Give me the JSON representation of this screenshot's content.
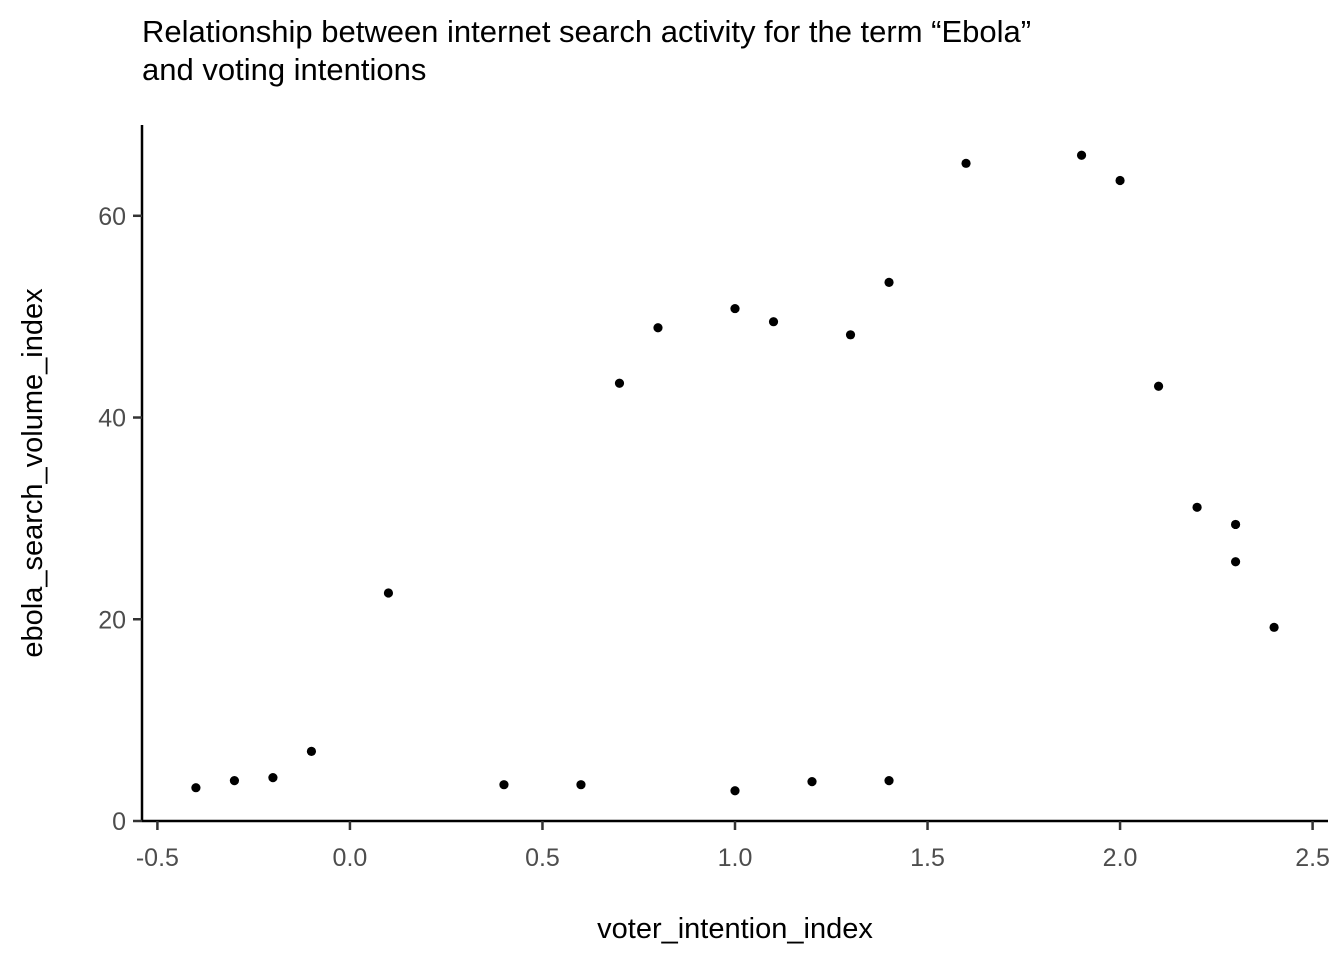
{
  "chart_data": {
    "type": "scatter",
    "title": "Relationship between internet search activity for the term “Ebola”",
    "subtitle": "and voting intentions",
    "xlabel": "voter_intention_index",
    "ylabel": "ebola_search_volume_index",
    "xlim": [
      -0.54,
      2.54
    ],
    "ylim": [
      0,
      69
    ],
    "x_ticks": [
      -0.5,
      0.0,
      0.5,
      1.0,
      1.5,
      2.0,
      2.5
    ],
    "x_tick_labels": [
      "-0.5",
      "0.0",
      "0.5",
      "1.0",
      "1.5",
      "2.0",
      "2.5"
    ],
    "y_ticks": [
      0,
      20,
      40,
      60
    ],
    "y_tick_labels": [
      "0",
      "20",
      "40",
      "60"
    ],
    "grid": false,
    "point_color": "#000000",
    "points": [
      {
        "x": -0.4,
        "y": 3.3
      },
      {
        "x": -0.3,
        "y": 4.0
      },
      {
        "x": -0.2,
        "y": 4.3
      },
      {
        "x": -0.1,
        "y": 6.9
      },
      {
        "x": 0.1,
        "y": 22.6
      },
      {
        "x": 0.4,
        "y": 3.6
      },
      {
        "x": 0.6,
        "y": 3.6
      },
      {
        "x": 0.7,
        "y": 43.4
      },
      {
        "x": 0.8,
        "y": 48.9
      },
      {
        "x": 1.0,
        "y": 50.8
      },
      {
        "x": 1.0,
        "y": 3.0
      },
      {
        "x": 1.1,
        "y": 49.5
      },
      {
        "x": 1.2,
        "y": 3.9
      },
      {
        "x": 1.3,
        "y": 48.2
      },
      {
        "x": 1.4,
        "y": 53.4
      },
      {
        "x": 1.4,
        "y": 4.0
      },
      {
        "x": 1.6,
        "y": 65.2
      },
      {
        "x": 1.9,
        "y": 66.0
      },
      {
        "x": 2.0,
        "y": 63.5
      },
      {
        "x": 2.1,
        "y": 43.1
      },
      {
        "x": 2.2,
        "y": 31.1
      },
      {
        "x": 2.3,
        "y": 29.4
      },
      {
        "x": 2.3,
        "y": 25.7
      },
      {
        "x": 2.4,
        "y": 19.2
      }
    ]
  }
}
